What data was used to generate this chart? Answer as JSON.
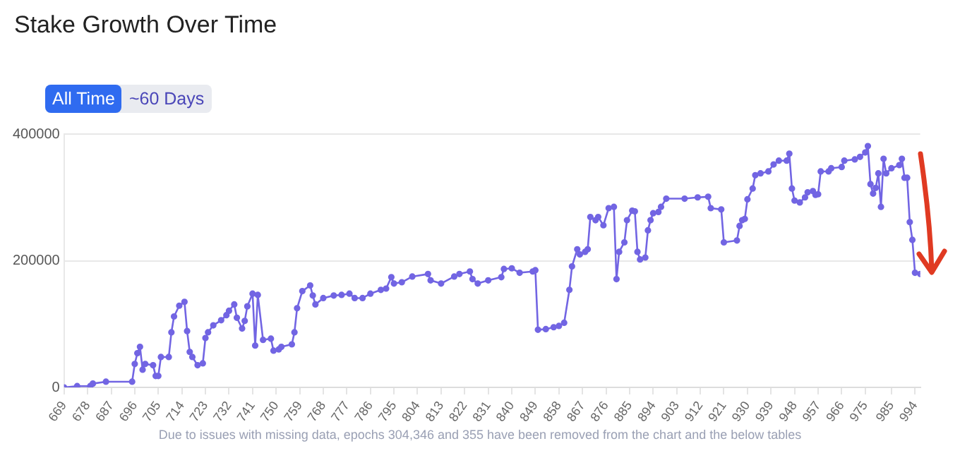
{
  "chart_data": {
    "type": "line",
    "title": "Stake Growth Over Time",
    "annotations": [
      "All Time",
      "~60 Days",
      "Due to issues with missing data, epochs 304,346 and 355 have been removed from the chart and the below tables"
    ],
    "xlim": [
      669,
      996
    ],
    "xticks": [
      669,
      678,
      687,
      696,
      705,
      714,
      723,
      732,
      741,
      750,
      759,
      768,
      777,
      786,
      795,
      804,
      813,
      822,
      831,
      840,
      849,
      858,
      867,
      876,
      885,
      894,
      903,
      912,
      921,
      930,
      939,
      948,
      957,
      966,
      975,
      985,
      994
    ],
    "ylim": [
      0,
      400000
    ],
    "yticks": [
      0,
      200000,
      400000
    ],
    "grid": "y",
    "legend": false,
    "marker": "circle",
    "line_style": "solid",
    "series": [
      {
        "color": "#7265e3",
        "x": [
          669,
          674,
          679,
          680,
          685,
          695,
          696,
          697,
          698,
          699,
          700,
          703,
          704,
          705,
          706,
          709,
          710,
          711,
          713,
          715,
          716,
          717,
          718,
          720,
          722,
          723,
          724,
          726,
          729,
          731,
          732,
          734,
          735,
          737,
          738,
          739,
          741,
          742,
          743,
          745,
          748,
          749,
          751,
          752,
          756,
          757,
          758,
          760,
          763,
          764,
          765,
          768,
          772,
          775,
          778,
          780,
          783,
          786,
          790,
          792,
          794,
          795,
          798,
          802,
          808,
          809,
          813,
          818,
          820,
          824,
          825,
          827,
          831,
          836,
          837,
          840,
          843,
          848,
          849,
          850,
          853,
          856,
          858,
          860,
          862,
          863,
          865,
          866,
          868,
          869,
          870,
          872,
          873,
          875,
          877,
          879,
          880,
          881,
          883,
          884,
          886,
          887,
          888,
          889,
          891,
          892,
          893,
          894,
          896,
          897,
          899,
          906,
          911,
          915,
          916,
          920,
          921,
          926,
          927,
          928,
          929,
          930,
          932,
          933,
          935,
          938,
          940,
          942,
          945,
          946,
          947,
          948,
          950,
          952,
          953,
          955,
          956,
          957,
          958,
          961,
          962,
          966,
          967,
          971,
          973,
          975,
          976,
          977,
          978,
          979,
          980,
          981,
          982,
          983,
          985,
          988,
          989,
          990,
          991,
          992,
          993,
          994,
          996
        ],
        "values": [
          0,
          2000,
          2000,
          6000,
          9000,
          9000,
          37000,
          54000,
          64000,
          28000,
          37000,
          35000,
          18000,
          18000,
          48000,
          48000,
          87000,
          112000,
          129000,
          135000,
          89000,
          56000,
          48000,
          35000,
          38000,
          78000,
          87000,
          98000,
          106000,
          114000,
          121000,
          131000,
          110000,
          93000,
          105000,
          128000,
          148000,
          66000,
          146000,
          75000,
          77000,
          58000,
          60000,
          64000,
          68000,
          87000,
          125000,
          152000,
          161000,
          145000,
          131000,
          141000,
          145000,
          146000,
          148000,
          141000,
          141000,
          148000,
          154000,
          156000,
          174000,
          164000,
          166000,
          175000,
          179000,
          169000,
          164000,
          175000,
          179000,
          183000,
          171000,
          164000,
          169000,
          174000,
          187000,
          188000,
          181000,
          183000,
          185000,
          91000,
          92000,
          95000,
          97000,
          102000,
          154000,
          191000,
          218000,
          210000,
          214000,
          218000,
          269000,
          264000,
          269000,
          256000,
          283000,
          285000,
          171000,
          214000,
          229000,
          264000,
          279000,
          278000,
          214000,
          202000,
          205000,
          248000,
          264000,
          275000,
          277000,
          285000,
          298000,
          298000,
          300000,
          301000,
          283000,
          281000,
          229000,
          232000,
          255000,
          264000,
          266000,
          297000,
          314000,
          335000,
          338000,
          341000,
          352000,
          358000,
          358000,
          369000,
          314000,
          295000,
          292000,
          300000,
          308000,
          310000,
          304000,
          305000,
          341000,
          341000,
          346000,
          348000,
          358000,
          360000,
          364000,
          371000,
          381000,
          321000,
          306000,
          315000,
          338000,
          285000,
          361000,
          338000,
          346000,
          351000,
          361000,
          331000,
          331000,
          261000,
          233000,
          181000,
          179000
        ]
      }
    ]
  }
}
